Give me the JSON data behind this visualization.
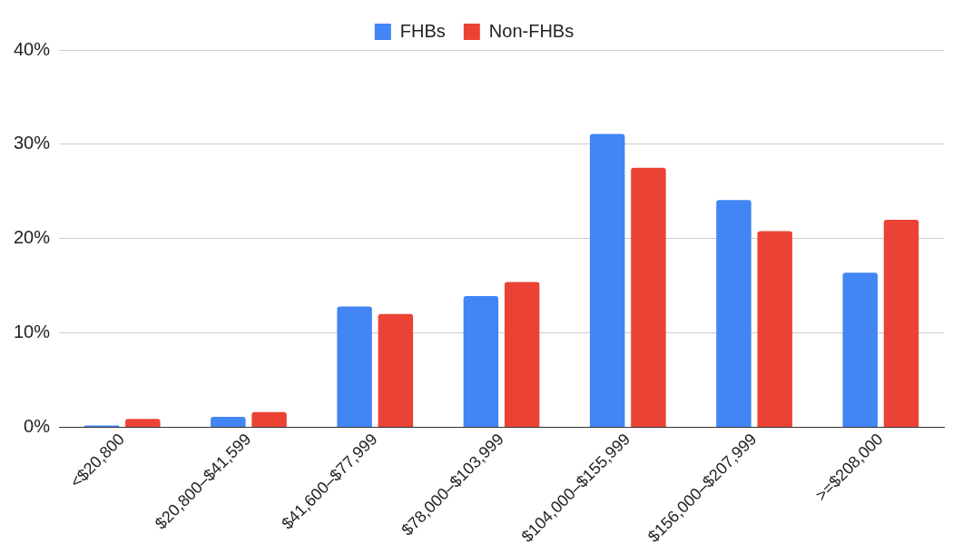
{
  "chart_data": {
    "type": "bar",
    "categories": [
      "<$20,800",
      "$20,800–$41,599",
      "$41,600–$77,999",
      "$78,000–$103,999",
      "$104,000–$155,999",
      "$156,000–$207,999",
      ">=$208,000"
    ],
    "series": [
      {
        "name": "FHBs",
        "color": "#4285f4",
        "values": [
          0.2,
          1.1,
          12.8,
          13.9,
          31.1,
          24.1,
          16.4
        ]
      },
      {
        "name": "Non-FHBs",
        "color": "#ea4335",
        "values": [
          0.9,
          1.6,
          12.0,
          15.4,
          27.5,
          20.8,
          22.0
        ]
      }
    ],
    "ylim": [
      0,
      40
    ],
    "yticks": [
      {
        "value": 0,
        "label": "0%"
      },
      {
        "value": 10,
        "label": "10%"
      },
      {
        "value": 20,
        "label": "20%"
      },
      {
        "value": 30,
        "label": "30%"
      },
      {
        "value": 40,
        "label": "40%"
      }
    ],
    "grid": "y",
    "legend": "top"
  }
}
